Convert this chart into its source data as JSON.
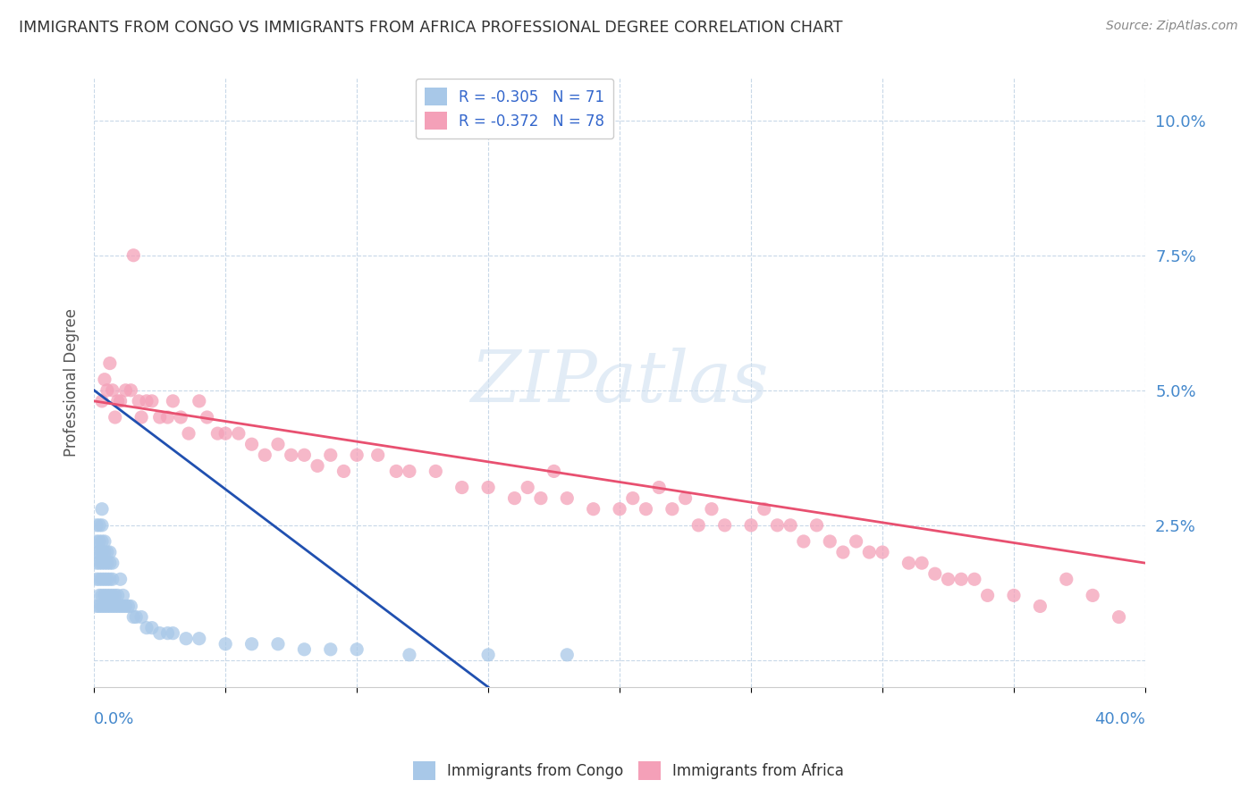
{
  "title": "IMMIGRANTS FROM CONGO VS IMMIGRANTS FROM AFRICA PROFESSIONAL DEGREE CORRELATION CHART",
  "source": "Source: ZipAtlas.com",
  "ylabel": "Professional Degree",
  "y_ticks": [
    0.0,
    0.025,
    0.05,
    0.075,
    0.1
  ],
  "x_range": [
    0.0,
    0.4
  ],
  "y_range": [
    -0.005,
    0.108
  ],
  "congo_R": -0.305,
  "congo_N": 71,
  "africa_R": -0.372,
  "africa_N": 78,
  "congo_color": "#a8c8e8",
  "africa_color": "#f4a0b8",
  "congo_line_color": "#2050b0",
  "africa_line_color": "#e85070",
  "background_color": "#ffffff",
  "grid_color": "#c8d8e8",
  "congo_scatter_x": [
    0.001,
    0.001,
    0.001,
    0.001,
    0.001,
    0.001,
    0.002,
    0.002,
    0.002,
    0.002,
    0.002,
    0.002,
    0.002,
    0.003,
    0.003,
    0.003,
    0.003,
    0.003,
    0.003,
    0.003,
    0.003,
    0.004,
    0.004,
    0.004,
    0.004,
    0.004,
    0.004,
    0.005,
    0.005,
    0.005,
    0.005,
    0.005,
    0.006,
    0.006,
    0.006,
    0.006,
    0.006,
    0.007,
    0.007,
    0.007,
    0.007,
    0.008,
    0.008,
    0.009,
    0.009,
    0.01,
    0.01,
    0.011,
    0.011,
    0.012,
    0.013,
    0.014,
    0.015,
    0.016,
    0.018,
    0.02,
    0.022,
    0.025,
    0.028,
    0.03,
    0.035,
    0.04,
    0.05,
    0.06,
    0.07,
    0.08,
    0.09,
    0.1,
    0.12,
    0.15,
    0.18
  ],
  "congo_scatter_y": [
    0.01,
    0.015,
    0.018,
    0.02,
    0.022,
    0.025,
    0.01,
    0.012,
    0.015,
    0.018,
    0.02,
    0.022,
    0.025,
    0.01,
    0.012,
    0.015,
    0.018,
    0.02,
    0.022,
    0.025,
    0.028,
    0.01,
    0.012,
    0.015,
    0.018,
    0.02,
    0.022,
    0.01,
    0.012,
    0.015,
    0.018,
    0.02,
    0.01,
    0.012,
    0.015,
    0.018,
    0.02,
    0.01,
    0.012,
    0.015,
    0.018,
    0.01,
    0.012,
    0.01,
    0.012,
    0.01,
    0.015,
    0.01,
    0.012,
    0.01,
    0.01,
    0.01,
    0.008,
    0.008,
    0.008,
    0.006,
    0.006,
    0.005,
    0.005,
    0.005,
    0.004,
    0.004,
    0.003,
    0.003,
    0.003,
    0.002,
    0.002,
    0.002,
    0.001,
    0.001,
    0.001
  ],
  "africa_scatter_x": [
    0.003,
    0.004,
    0.005,
    0.006,
    0.007,
    0.008,
    0.009,
    0.01,
    0.012,
    0.014,
    0.015,
    0.017,
    0.018,
    0.02,
    0.022,
    0.025,
    0.028,
    0.03,
    0.033,
    0.036,
    0.04,
    0.043,
    0.047,
    0.05,
    0.055,
    0.06,
    0.065,
    0.07,
    0.075,
    0.08,
    0.085,
    0.09,
    0.095,
    0.1,
    0.108,
    0.115,
    0.12,
    0.13,
    0.14,
    0.15,
    0.16,
    0.165,
    0.17,
    0.175,
    0.18,
    0.19,
    0.2,
    0.205,
    0.21,
    0.215,
    0.22,
    0.225,
    0.23,
    0.235,
    0.24,
    0.25,
    0.255,
    0.26,
    0.265,
    0.27,
    0.275,
    0.28,
    0.285,
    0.29,
    0.295,
    0.3,
    0.31,
    0.315,
    0.32,
    0.325,
    0.33,
    0.335,
    0.34,
    0.35,
    0.36,
    0.37,
    0.38,
    0.39
  ],
  "africa_scatter_y": [
    0.048,
    0.052,
    0.05,
    0.055,
    0.05,
    0.045,
    0.048,
    0.048,
    0.05,
    0.05,
    0.075,
    0.048,
    0.045,
    0.048,
    0.048,
    0.045,
    0.045,
    0.048,
    0.045,
    0.042,
    0.048,
    0.045,
    0.042,
    0.042,
    0.042,
    0.04,
    0.038,
    0.04,
    0.038,
    0.038,
    0.036,
    0.038,
    0.035,
    0.038,
    0.038,
    0.035,
    0.035,
    0.035,
    0.032,
    0.032,
    0.03,
    0.032,
    0.03,
    0.035,
    0.03,
    0.028,
    0.028,
    0.03,
    0.028,
    0.032,
    0.028,
    0.03,
    0.025,
    0.028,
    0.025,
    0.025,
    0.028,
    0.025,
    0.025,
    0.022,
    0.025,
    0.022,
    0.02,
    0.022,
    0.02,
    0.02,
    0.018,
    0.018,
    0.016,
    0.015,
    0.015,
    0.015,
    0.012,
    0.012,
    0.01,
    0.015,
    0.012,
    0.008
  ],
  "congo_line_start_x": 0.0,
  "congo_line_start_y": 0.05,
  "congo_line_end_x": 0.15,
  "congo_line_end_y": -0.005,
  "africa_line_start_x": 0.0,
  "africa_line_start_y": 0.048,
  "africa_line_end_x": 0.4,
  "africa_line_end_y": 0.018
}
